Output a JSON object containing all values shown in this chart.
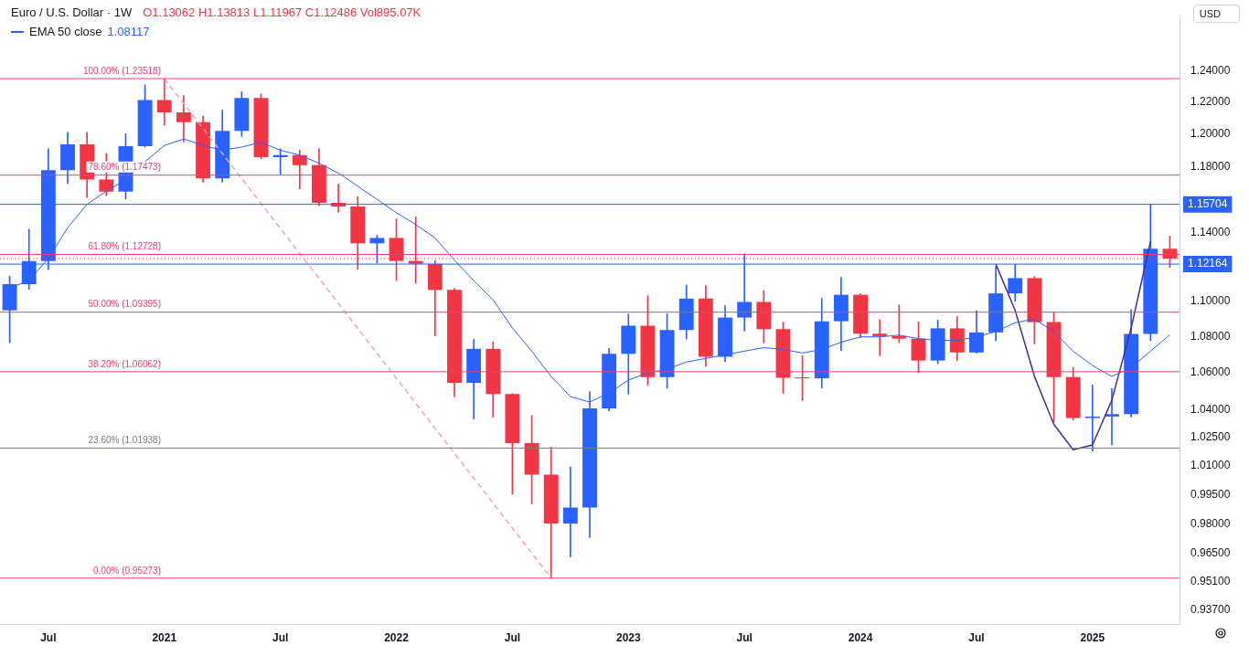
{
  "chart_data": {
    "type": "candlestick",
    "title": "Euro / U.S. Dollar · 1W",
    "annotations": [
      "O1.13062 H1.13813 L1.11967 C1.12486 Vol895.07K",
      "1.08117",
      "USD"
    ],
    "categories": [
      null,
      null,
      "Jul",
      null,
      null,
      null,
      null,
      null,
      "2021",
      null,
      null,
      null,
      null,
      null,
      "Jul",
      null,
      null,
      null,
      null,
      null,
      "2022",
      null,
      null,
      null,
      null,
      null,
      "Jul",
      null,
      null,
      null,
      null,
      null,
      "2023",
      null,
      null,
      null,
      null,
      null,
      "Jul",
      null,
      null,
      null,
      null,
      null,
      "2024",
      null,
      null,
      null,
      null,
      null,
      "Jul",
      null,
      null,
      null,
      null,
      null,
      "2025",
      null,
      null,
      null,
      null
    ],
    "ohlc": [
      [
        1.095,
        1.1147,
        1.0767,
        1.11
      ],
      [
        1.11,
        1.1422,
        1.107,
        1.1234
      ],
      [
        1.1234,
        1.1909,
        1.1185,
        1.1778
      ],
      [
        1.1778,
        1.2011,
        1.1696,
        1.1937
      ],
      [
        1.1937,
        1.2011,
        1.1612,
        1.1721
      ],
      [
        1.1721,
        1.1881,
        1.1622,
        1.1647
      ],
      [
        1.1647,
        1.2003,
        1.1603,
        1.1925
      ],
      [
        1.1925,
        1.231,
        1.192,
        1.2215
      ],
      [
        1.2215,
        1.2352,
        1.2055,
        1.2137
      ],
      [
        1.2137,
        1.2243,
        1.1952,
        1.2075
      ],
      [
        1.2075,
        1.2113,
        1.1704,
        1.1728
      ],
      [
        1.1728,
        1.215,
        1.1704,
        1.202
      ],
      [
        1.202,
        1.2266,
        1.1986,
        1.2228
      ],
      [
        1.2228,
        1.2254,
        1.1847,
        1.1858
      ],
      [
        1.1858,
        1.1909,
        1.1752,
        1.187
      ],
      [
        1.187,
        1.1901,
        1.1664,
        1.1808
      ],
      [
        1.1808,
        1.1909,
        1.1563,
        1.158
      ],
      [
        1.158,
        1.1692,
        1.1524,
        1.1558
      ],
      [
        1.1558,
        1.1616,
        1.1186,
        1.1338
      ],
      [
        1.1338,
        1.1386,
        1.1222,
        1.137
      ],
      [
        1.137,
        1.1483,
        1.1121,
        1.1235
      ],
      [
        1.1235,
        1.1495,
        1.1106,
        1.1218
      ],
      [
        1.1218,
        1.1237,
        1.0806,
        1.1067
      ],
      [
        1.1067,
        1.1076,
        1.047,
        1.0545
      ],
      [
        1.0545,
        1.0787,
        1.0349,
        1.0733
      ],
      [
        1.0733,
        1.0773,
        1.0359,
        1.0484
      ],
      [
        1.0484,
        1.0486,
        0.9952,
        1.022
      ],
      [
        1.022,
        1.0368,
        0.9901,
        1.0054
      ],
      [
        1.0054,
        1.0198,
        0.9527,
        0.9802
      ],
      [
        0.9802,
        1.0094,
        0.9632,
        0.9883
      ],
      [
        0.9883,
        1.0497,
        0.973,
        1.0406
      ],
      [
        1.0406,
        1.0736,
        1.0393,
        1.0705
      ],
      [
        1.0705,
        1.0929,
        1.0483,
        1.0863
      ],
      [
        1.0863,
        1.1033,
        1.0533,
        1.0576
      ],
      [
        1.0576,
        1.093,
        1.0516,
        1.0839
      ],
      [
        1.0839,
        1.1095,
        1.0788,
        1.1017
      ],
      [
        1.1017,
        1.1092,
        1.0635,
        1.0689
      ],
      [
        1.0689,
        1.0976,
        1.0662,
        1.0909
      ],
      [
        1.0909,
        1.1276,
        1.0833,
        1.0998
      ],
      [
        1.0998,
        1.1064,
        1.0766,
        1.0843
      ],
      [
        1.0843,
        1.0882,
        1.0488,
        1.0573
      ],
      [
        1.0573,
        1.0695,
        1.0448,
        1.057
      ],
      [
        1.057,
        1.1017,
        1.0517,
        1.0888
      ],
      [
        1.0888,
        1.1139,
        1.0724,
        1.1039
      ],
      [
        1.1039,
        1.1046,
        1.0795,
        1.0818
      ],
      [
        1.0818,
        1.0897,
        1.0695,
        1.0804
      ],
      [
        1.0804,
        1.0981,
        1.0767,
        1.079
      ],
      [
        1.079,
        1.0885,
        1.0601,
        1.0668
      ],
      [
        1.0668,
        1.0895,
        1.065,
        1.0848
      ],
      [
        1.0848,
        1.0916,
        1.0668,
        1.0713
      ],
      [
        1.0713,
        1.0948,
        1.0709,
        1.0825
      ],
      [
        1.0825,
        1.1202,
        1.0778,
        1.1047
      ],
      [
        1.1047,
        1.1214,
        1.1001,
        1.1135
      ],
      [
        1.1135,
        1.1144,
        1.0761,
        1.0883
      ],
      [
        1.0883,
        1.0937,
        1.0332,
        1.0577
      ],
      [
        1.0577,
        1.063,
        1.0343,
        1.0354
      ],
      [
        1.0354,
        1.0533,
        1.0178,
        1.0362
      ],
      [
        1.0362,
        1.0513,
        1.021,
        1.0375
      ],
      [
        1.0375,
        1.0955,
        1.036,
        1.0816
      ],
      [
        1.0816,
        1.15704,
        1.0779,
        1.13062
      ],
      [
        1.13062,
        1.13813,
        1.11967,
        1.12486
      ]
    ],
    "colors": [
      "#2962ff",
      "#2962ff",
      "#2962ff",
      "#2962ff",
      "#f23645",
      "#f23645",
      "#2962ff",
      "#2962ff",
      "#f23645",
      "#f23645",
      "#f23645",
      "#2962ff",
      "#2962ff",
      "#f23645",
      "#2962ff",
      "#f23645",
      "#f23645",
      "#f23645",
      "#f23645",
      "#2962ff",
      "#f23645",
      "#f23645",
      "#f23645",
      "#f23645",
      "#2962ff",
      "#f23645",
      "#f23645",
      "#f23645",
      "#f23645",
      "#2962ff",
      "#2962ff",
      "#2962ff",
      "#2962ff",
      "#f23645",
      "#2962ff",
      "#2962ff",
      "#f23645",
      "#2962ff",
      "#2962ff",
      "#f23645",
      "#f23645",
      "#f23645",
      "#2962ff",
      "#2962ff",
      "#f23645",
      "#f23645",
      "#f23645",
      "#f23645",
      "#2962ff",
      "#f23645",
      "#2962ff",
      "#2962ff",
      "#2962ff",
      "#f23645",
      "#f23645",
      "#f23645",
      "#2962ff",
      "#2962ff",
      "#2962ff",
      "#2962ff",
      "#f23645"
    ],
    "series": [
      {
        "name": "EMA 50 close",
        "type": "line",
        "color": "#2962ff",
        "values": [
          1.108,
          1.112,
          1.125,
          1.143,
          1.157,
          1.165,
          1.172,
          1.183,
          1.193,
          1.197,
          1.193,
          1.19,
          1.192,
          1.195,
          1.19,
          1.187,
          1.182,
          1.176,
          1.168,
          1.16,
          1.152,
          1.145,
          1.137,
          1.124,
          1.112,
          1.101,
          1.085,
          1.072,
          1.058,
          1.047,
          1.044,
          1.049,
          1.056,
          1.06,
          1.062,
          1.066,
          1.068,
          1.07,
          1.072,
          1.074,
          1.073,
          1.071,
          1.073,
          1.077,
          1.08,
          1.08,
          1.081,
          1.079,
          1.078,
          1.078,
          1.08,
          1.083,
          1.088,
          1.09,
          1.083,
          1.072,
          1.064,
          1.058,
          1.063,
          1.072,
          1.0812
        ]
      },
      {
        "type": "line",
        "color": "#f7a1b8",
        "line_style": "dashed",
        "values": [
          null,
          null,
          null,
          null,
          null,
          null,
          null,
          null,
          1.23518,
          null,
          null,
          null,
          null,
          null,
          null,
          null,
          null,
          null,
          null,
          null,
          null,
          null,
          null,
          null,
          null,
          null,
          null,
          null,
          0.95273,
          null,
          null,
          null,
          null,
          null,
          null,
          null,
          null,
          null,
          null,
          null,
          null,
          null,
          null,
          null,
          null,
          null,
          null,
          null,
          null,
          null,
          null,
          null,
          null,
          null,
          null,
          null,
          null,
          null,
          null,
          null,
          null
        ]
      },
      {
        "type": "line",
        "color": "#4a2c8f",
        "values": [
          null,
          null,
          null,
          null,
          null,
          null,
          null,
          null,
          null,
          null,
          null,
          null,
          null,
          null,
          null,
          null,
          null,
          null,
          null,
          null,
          null,
          null,
          null,
          null,
          null,
          null,
          null,
          null,
          null,
          null,
          null,
          null,
          null,
          null,
          null,
          null,
          null,
          null,
          null,
          null,
          null,
          null,
          null,
          null,
          null,
          null,
          null,
          null,
          null,
          null,
          null,
          1.1216,
          1.095,
          1.058,
          1.032,
          1.0185,
          1.021,
          1.045,
          1.085,
          1.135,
          null
        ]
      }
    ],
    "ref_lines": [
      {
        "axis": "y",
        "value": 1.23518,
        "label": "100.00% (1.23518)",
        "color": "#f23d7a"
      },
      {
        "axis": "y",
        "value": 1.17473,
        "label": "78.60% (1.17473)",
        "color": "#f23d7a"
      },
      {
        "axis": "y",
        "value": 1.12728,
        "label": "61.80% (1.12728)",
        "color": "#f23d7a"
      },
      {
        "axis": "y",
        "value": 1.09395,
        "label": "50.00% (1.09395)",
        "color": "#f23d7a"
      },
      {
        "axis": "y",
        "value": 1.06062,
        "label": "38.20% (1.06062)",
        "color": "#f23d7a"
      },
      {
        "axis": "y",
        "value": 1.01938,
        "label": "23.60% (1.01938)",
        "color": "#787b86"
      },
      {
        "axis": "y",
        "value": 0.95273,
        "label": "0.00% (0.95273)",
        "color": "#f23d7a"
      },
      {
        "axis": "y",
        "value": 1.15704,
        "label": "1.15704",
        "color": "#2962ff",
        "line_style": "solid"
      },
      {
        "axis": "y",
        "value": 1.12164,
        "label": "1.12164",
        "color": "#2962ff",
        "line_style": "solid"
      },
      {
        "axis": "y",
        "value": 1.12486,
        "color": "#f23645",
        "line_style": "dotted"
      }
    ],
    "log": "y",
    "ylim": [
      0.93,
      1.275
    ],
    "yticks": [
      {
        "value": 1.24,
        "label": "1.24000"
      },
      {
        "value": 1.22,
        "label": "1.22000"
      },
      {
        "value": 1.2,
        "label": "1.20000"
      },
      {
        "value": 1.18,
        "label": "1.18000"
      },
      {
        "value": 1.14,
        "label": "1.14000"
      },
      {
        "value": 1.1,
        "label": "1.10000"
      },
      {
        "value": 1.08,
        "label": "1.08000"
      },
      {
        "value": 1.06,
        "label": "1.06000"
      },
      {
        "value": 1.04,
        "label": "1.04000"
      },
      {
        "value": 1.025,
        "label": "1.02500"
      },
      {
        "value": 1.01,
        "label": "1.01000"
      },
      {
        "value": 0.995,
        "label": "0.99500"
      },
      {
        "value": 0.98,
        "label": "0.98000"
      },
      {
        "value": 0.965,
        "label": "0.96500"
      },
      {
        "value": 0.951,
        "label": "0.95100"
      },
      {
        "value": 0.937,
        "label": "0.93700"
      }
    ],
    "legend": "top left",
    "marker": "none"
  }
}
